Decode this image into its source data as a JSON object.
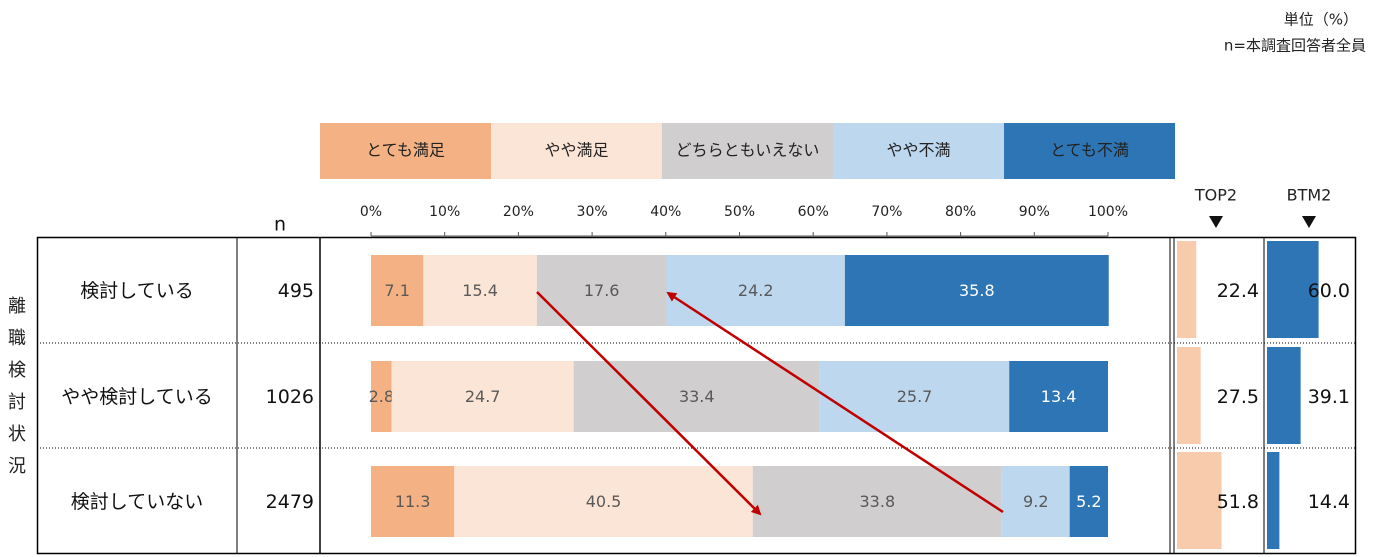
{
  "note_unit": "単位（%）",
  "note_n": "n=本調査回答者全員",
  "chart_data": {
    "type": "stacked-bar",
    "row_group_label": "離職検討状況",
    "n_header": "n",
    "categories": [
      "検討している",
      "やや検討している",
      "検討していない"
    ],
    "n_values": [
      495,
      1026,
      2479
    ],
    "series": [
      {
        "name": "とても満足",
        "color": "#f4b183",
        "values": [
          7.1,
          2.8,
          11.3
        ]
      },
      {
        "name": "やや満足",
        "color": "#fbe5d6",
        "values": [
          15.4,
          24.7,
          40.5
        ]
      },
      {
        "name": "どちらともいえない",
        "color": "#d0cece",
        "values": [
          17.6,
          33.4,
          33.8
        ]
      },
      {
        "name": "やや不満",
        "color": "#bdd7ee",
        "values": [
          24.2,
          25.7,
          9.2
        ]
      },
      {
        "name": "とても不満",
        "color": "#2e75b6",
        "values": [
          35.8,
          13.4,
          5.2
        ]
      }
    ],
    "xlim": [
      0,
      100
    ],
    "xticks": [
      {
        "value": 0,
        "label": "0%"
      },
      {
        "value": 10,
        "label": "10%"
      },
      {
        "value": 20,
        "label": "20%"
      },
      {
        "value": 30,
        "label": "30%"
      },
      {
        "value": 40,
        "label": "40%"
      },
      {
        "value": 50,
        "label": "50%"
      },
      {
        "value": 60,
        "label": "60%"
      },
      {
        "value": 70,
        "label": "70%"
      },
      {
        "value": 80,
        "label": "80%"
      },
      {
        "value": 90,
        "label": "90%"
      },
      {
        "value": 100,
        "label": "100%"
      }
    ],
    "top2": {
      "name": "TOP2",
      "color": "#f8cbad",
      "values": [
        22.4,
        27.5,
        51.8
      ],
      "xlim": [
        0,
        100
      ]
    },
    "btm2": {
      "name": "BTM2",
      "color": "#2e75b6",
      "values": [
        60,
        39.1,
        14.4
      ],
      "value_labels": [
        "60.0",
        "39.1",
        "14.4"
      ],
      "xlim": [
        0,
        100
      ]
    }
  }
}
